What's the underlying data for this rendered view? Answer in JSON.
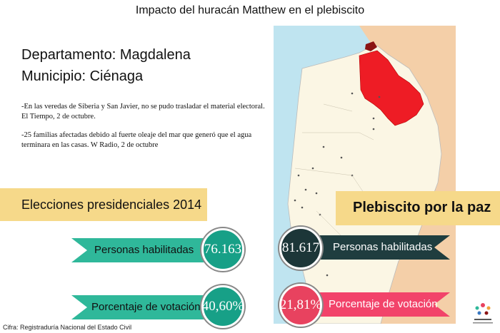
{
  "title": "Impacto del huracán Matthew en el plebiscito",
  "departamento": "Departamento: Magdalena",
  "municipio": "Municipio: Ciénaga",
  "notes": [
    "-En las veredas de Siberia y San Javier, no se pudo trasladar el material electoral. El Tiempo, 2 de octubre.",
    "-25 familias afectadas debido al fuerte oleaje del mar que generó que el agua terminara en las casas. W Radio, 2 de octubre"
  ],
  "elecciones": {
    "heading": "Elecciones presidenciales 2014",
    "personas_label": "Personas habilitadas",
    "personas_value": "76.163",
    "porcentaje_label": "Porcentaje de votación",
    "porcentaje_value": "40,60%"
  },
  "plebiscito": {
    "heading": "Plebiscito por la paz",
    "personas_label": "Personas habilitadas",
    "personas_value": "81.617",
    "porcentaje_label": "Porcentaje de votación",
    "porcentaje_value": "21,81%"
  },
  "footer": "Cifra: Registraduría Nacional del Estado Civil",
  "colors": {
    "banner": "#f6d98a",
    "teal_ribbon": "#2fb89a",
    "teal_circle": "#17a087",
    "dark_ribbon": "#1f3d3f",
    "dark_circle": "#1c3638",
    "pink_ribbon": "#f2436a",
    "pink_circle": "#e8425f",
    "highlight_region": "#ee1c25",
    "map_land": "#fbf6e4",
    "map_sea": "#bfe4f0",
    "map_neighbor": "#f4cfa8"
  },
  "icons": [
    "map-illustration",
    "logo-icon"
  ]
}
